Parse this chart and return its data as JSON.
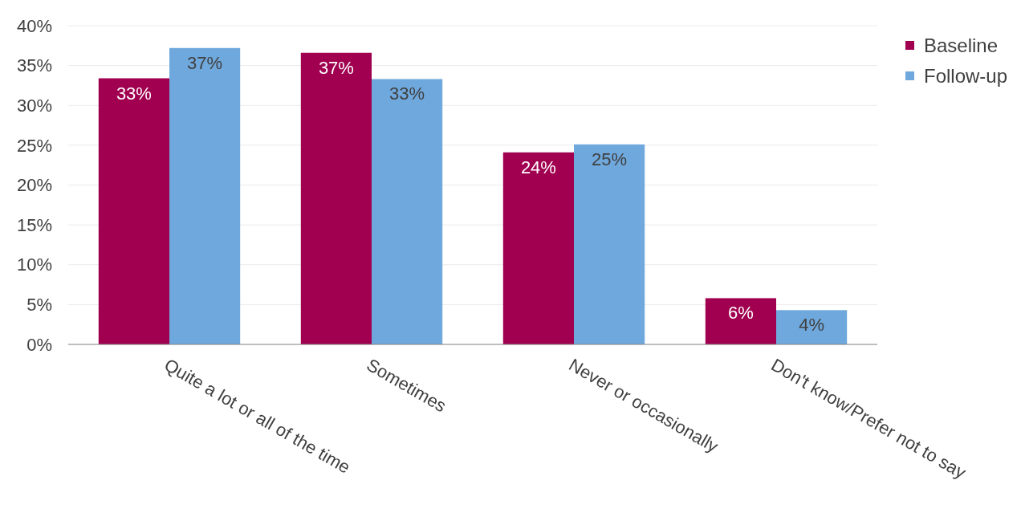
{
  "chart_data": {
    "type": "bar",
    "categories": [
      "Quite a lot or all of the time",
      "Sometimes",
      "Never or occasionally",
      "Don't know/Prefer not to say"
    ],
    "series": [
      {
        "name": "Baseline",
        "color": "#a0004f",
        "values": [
          33.4,
          36.6,
          24.1,
          5.8
        ],
        "value_labels": [
          "33%",
          "37%",
          "24%",
          "6%"
        ]
      },
      {
        "name": "Follow-up",
        "color": "#6fa8dc",
        "values": [
          37.2,
          33.3,
          25.1,
          4.3
        ],
        "value_labels": [
          "37%",
          "33%",
          "25%",
          "4%"
        ]
      }
    ],
    "ylim": [
      0,
      40
    ],
    "yticks": [
      {
        "value": 0,
        "label": "0%"
      },
      {
        "value": 5,
        "label": "5%"
      },
      {
        "value": 10,
        "label": "10%"
      },
      {
        "value": 15,
        "label": "15%"
      },
      {
        "value": 20,
        "label": "20%"
      },
      {
        "value": 25,
        "label": "25%"
      },
      {
        "value": 30,
        "label": "30%"
      },
      {
        "value": 35,
        "label": "35%"
      },
      {
        "value": 40,
        "label": "40%"
      }
    ],
    "grid": "y",
    "legend": "top right"
  }
}
